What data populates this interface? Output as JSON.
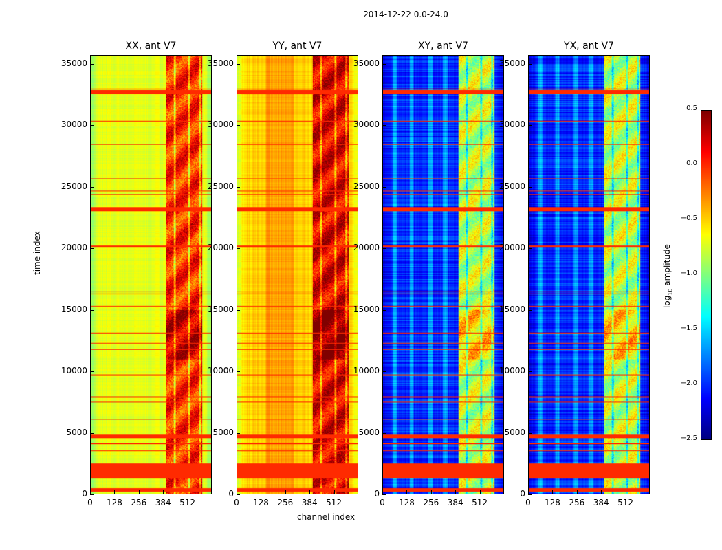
{
  "chart_data": [
    {
      "type": "heatmap",
      "suptitle": "2014-12-22 0.0-24.0",
      "xlabel": "channel index",
      "ylabel": "time index",
      "xlim": [
        0,
        640
      ],
      "ylim": [
        0,
        35700
      ],
      "xticks": [
        "0",
        "128",
        "256",
        "384",
        "512"
      ],
      "yticks": [
        "0",
        "5000",
        "10000",
        "15000",
        "20000",
        "25000",
        "30000",
        "35000"
      ],
      "colormap": "jet",
      "colorbar": {
        "label_main": "log",
        "label_sub": "10",
        "label_rest": " amplitude",
        "range": [
          -2.5,
          0.5
        ],
        "ticks": [
          "0.5",
          "0.0",
          "−0.5",
          "−1.0",
          "−1.5",
          "−2.0",
          "−2.5"
        ]
      },
      "flagged_time_ranges": [
        [
          170,
          500
        ],
        [
          1230,
          2460
        ],
        [
          4580,
          4860
        ],
        [
          23050,
          23390
        ],
        [
          32600,
          32940
        ]
      ],
      "flagged_time_lines": [
        1700,
        3500,
        4100,
        6100,
        7500,
        7900,
        9700,
        11800,
        12300,
        13100,
        15300,
        16300,
        16500,
        20200,
        24400,
        24700,
        25700,
        28500,
        30400,
        32700,
        33000
      ],
      "panels": [
        {
          "title": "XX, ant V7",
          "baseline_log_amp": -0.7,
          "edge_log_amp": -0.95,
          "rfi_band_channels": [
            400,
            590
          ],
          "rfi_band_log_amp": 0.0
        },
        {
          "title": "YY, ant V7",
          "baseline_log_amp": -0.5,
          "edge_log_amp": -0.75,
          "rfi_band_channels": [
            400,
            590
          ],
          "rfi_band_log_amp": 0.2
        },
        {
          "title": "XY, ant V7",
          "baseline_log_amp": -2.0,
          "edge_log_amp": -2.2,
          "rfi_band_channels": [
            400,
            590
          ],
          "rfi_band_log_amp": -0.8
        },
        {
          "title": "YX, ant V7",
          "baseline_log_amp": -2.0,
          "edge_log_amp": -2.2,
          "rfi_band_channels": [
            400,
            590
          ],
          "rfi_band_log_amp": -0.8
        }
      ]
    }
  ]
}
